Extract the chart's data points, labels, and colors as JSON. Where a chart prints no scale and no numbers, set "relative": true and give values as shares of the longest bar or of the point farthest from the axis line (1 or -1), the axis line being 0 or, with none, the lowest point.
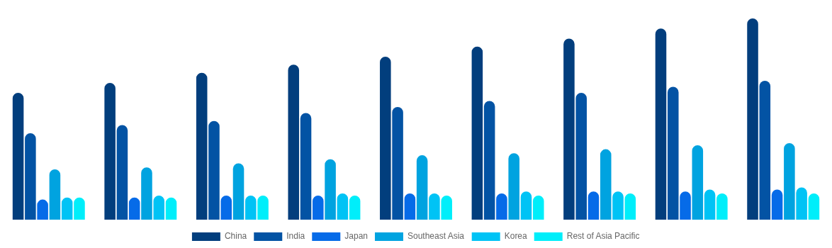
{
  "chart_data": {
    "type": "bar",
    "relative": true,
    "legend": "bottom",
    "categories": [
      null,
      null,
      null,
      null,
      null,
      null,
      null,
      null,
      null
    ],
    "series": [
      {
        "name": "China",
        "color": "#023e7d",
        "values": [
          0.63,
          0.68,
          0.73,
          0.77,
          0.81,
          0.86,
          0.9,
          0.95,
          1
        ]
      },
      {
        "name": "India",
        "color": "#0353a4",
        "values": [
          0.43,
          0.47,
          0.49,
          0.53,
          0.56,
          0.59,
          0.63,
          0.66,
          0.69
        ]
      },
      {
        "name": "Japan",
        "color": "#066be8",
        "values": [
          0.1,
          0.11,
          0.12,
          0.12,
          0.13,
          0.13,
          0.14,
          0.14,
          0.15
        ]
      },
      {
        "name": "Southeast Asia",
        "color": "#00a3e0",
        "values": [
          0.25,
          0.26,
          0.28,
          0.3,
          0.32,
          0.33,
          0.35,
          0.37,
          0.38
        ]
      },
      {
        "name": "Korea",
        "color": "#00c3f5",
        "values": [
          0.11,
          0.12,
          0.12,
          0.13,
          0.13,
          0.14,
          0.14,
          0.15,
          0.16
        ]
      },
      {
        "name": "Rest of Asia Pacific",
        "color": "#00eefa",
        "values": [
          0.11,
          0.11,
          0.12,
          0.12,
          0.12,
          0.12,
          0.13,
          0.13,
          0.13
        ]
      }
    ]
  }
}
